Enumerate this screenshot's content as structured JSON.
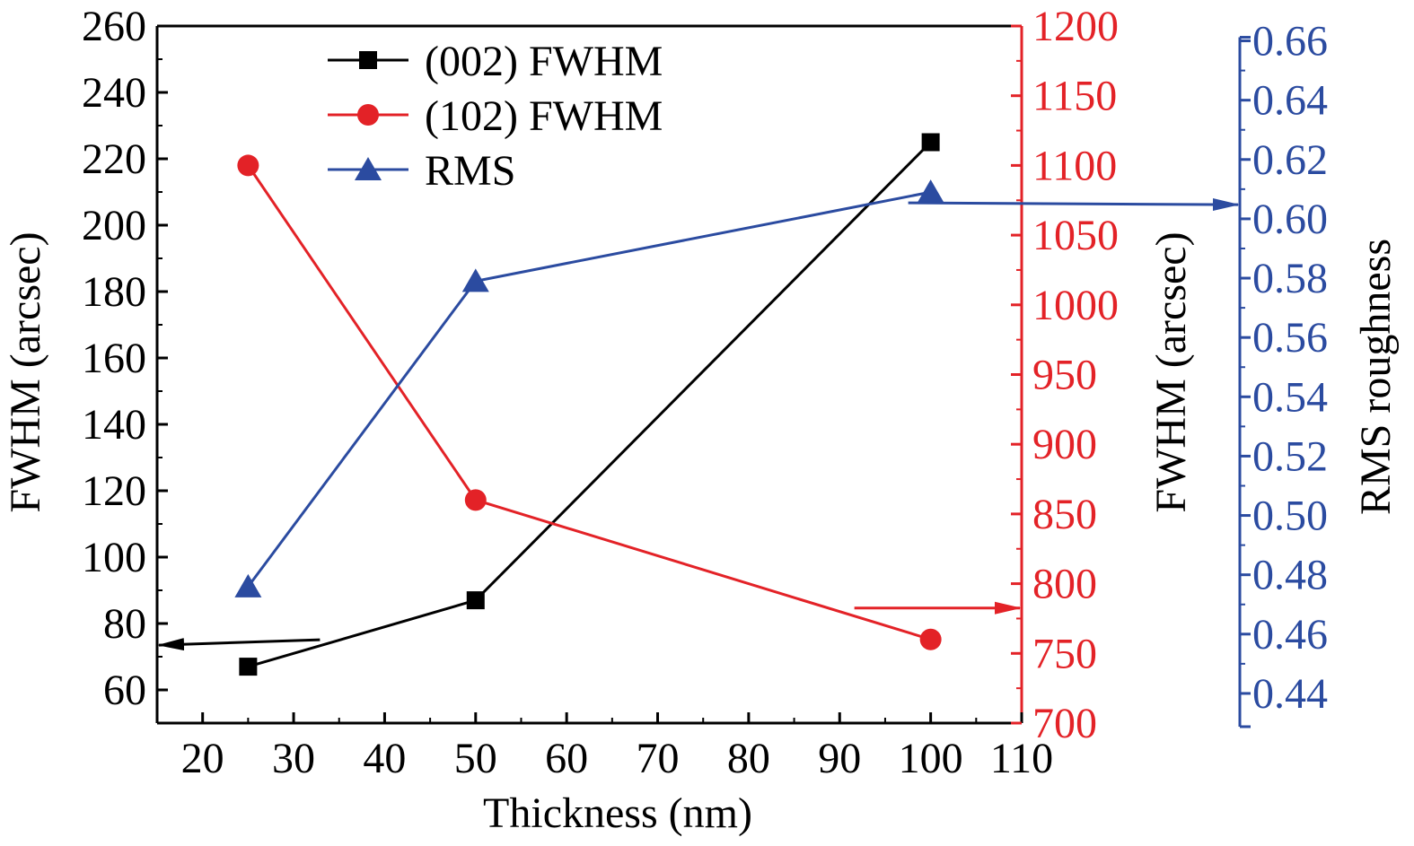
{
  "chart_data": {
    "type": "line",
    "title": "",
    "xlabel": "Thickness (nm)",
    "xlim": [
      15,
      110
    ],
    "xticks": [
      20,
      30,
      40,
      50,
      60,
      70,
      80,
      90,
      100,
      110
    ],
    "axes": {
      "left": {
        "label": "FWHM (arcsec)",
        "ylim": [
          50,
          260
        ],
        "ticks": [
          60,
          80,
          100,
          120,
          140,
          160,
          180,
          200,
          220,
          240,
          260
        ],
        "tick_labels": [
          "60",
          "80",
          "100",
          "120",
          "140",
          "160",
          "180",
          "200",
          "220",
          "240",
          "260"
        ],
        "color": "#000000"
      },
      "right_red": {
        "label": "FWHM (arcsec)",
        "ylim": [
          700,
          1200
        ],
        "ticks": [
          700,
          750,
          800,
          850,
          900,
          950,
          1000,
          1050,
          1100,
          1150,
          1200
        ],
        "tick_labels": [
          "700",
          "750",
          "800",
          "850",
          "900",
          "950",
          "1000",
          "1050",
          "1100",
          "1150",
          "1200"
        ],
        "color": "#e32227"
      },
      "right_blue": {
        "label": "RMS roughness",
        "ylim": [
          0.43,
          0.665
        ],
        "ticks": [
          0.44,
          0.46,
          0.48,
          0.5,
          0.52,
          0.54,
          0.56,
          0.58,
          0.6,
          0.62,
          0.64,
          0.66
        ],
        "tick_labels": [
          "0.44",
          "0.46",
          "0.48",
          "0.50",
          "0.52",
          "0.54",
          "0.56",
          "0.58",
          "0.60",
          "0.62",
          "0.64",
          "0.66"
        ],
        "color": "#2b4ba0"
      }
    },
    "series": [
      {
        "name": "(002) FWHM",
        "axis": "left",
        "marker": "square",
        "color": "#000000",
        "x": [
          25,
          50,
          100
        ],
        "values": [
          67,
          87,
          225
        ]
      },
      {
        "name": "(102) FWHM",
        "axis": "right_red",
        "marker": "circle",
        "color": "#e32227",
        "x": [
          25,
          50,
          100
        ],
        "values": [
          1100,
          860,
          760
        ]
      },
      {
        "name": "RMS",
        "axis": "right_blue",
        "marker": "triangle",
        "color": "#2b4ba0",
        "x": [
          25,
          50,
          100
        ],
        "values": [
          0.476,
          0.579,
          0.609
        ]
      }
    ],
    "legend": {
      "position": "top-left"
    },
    "grid": false
  }
}
